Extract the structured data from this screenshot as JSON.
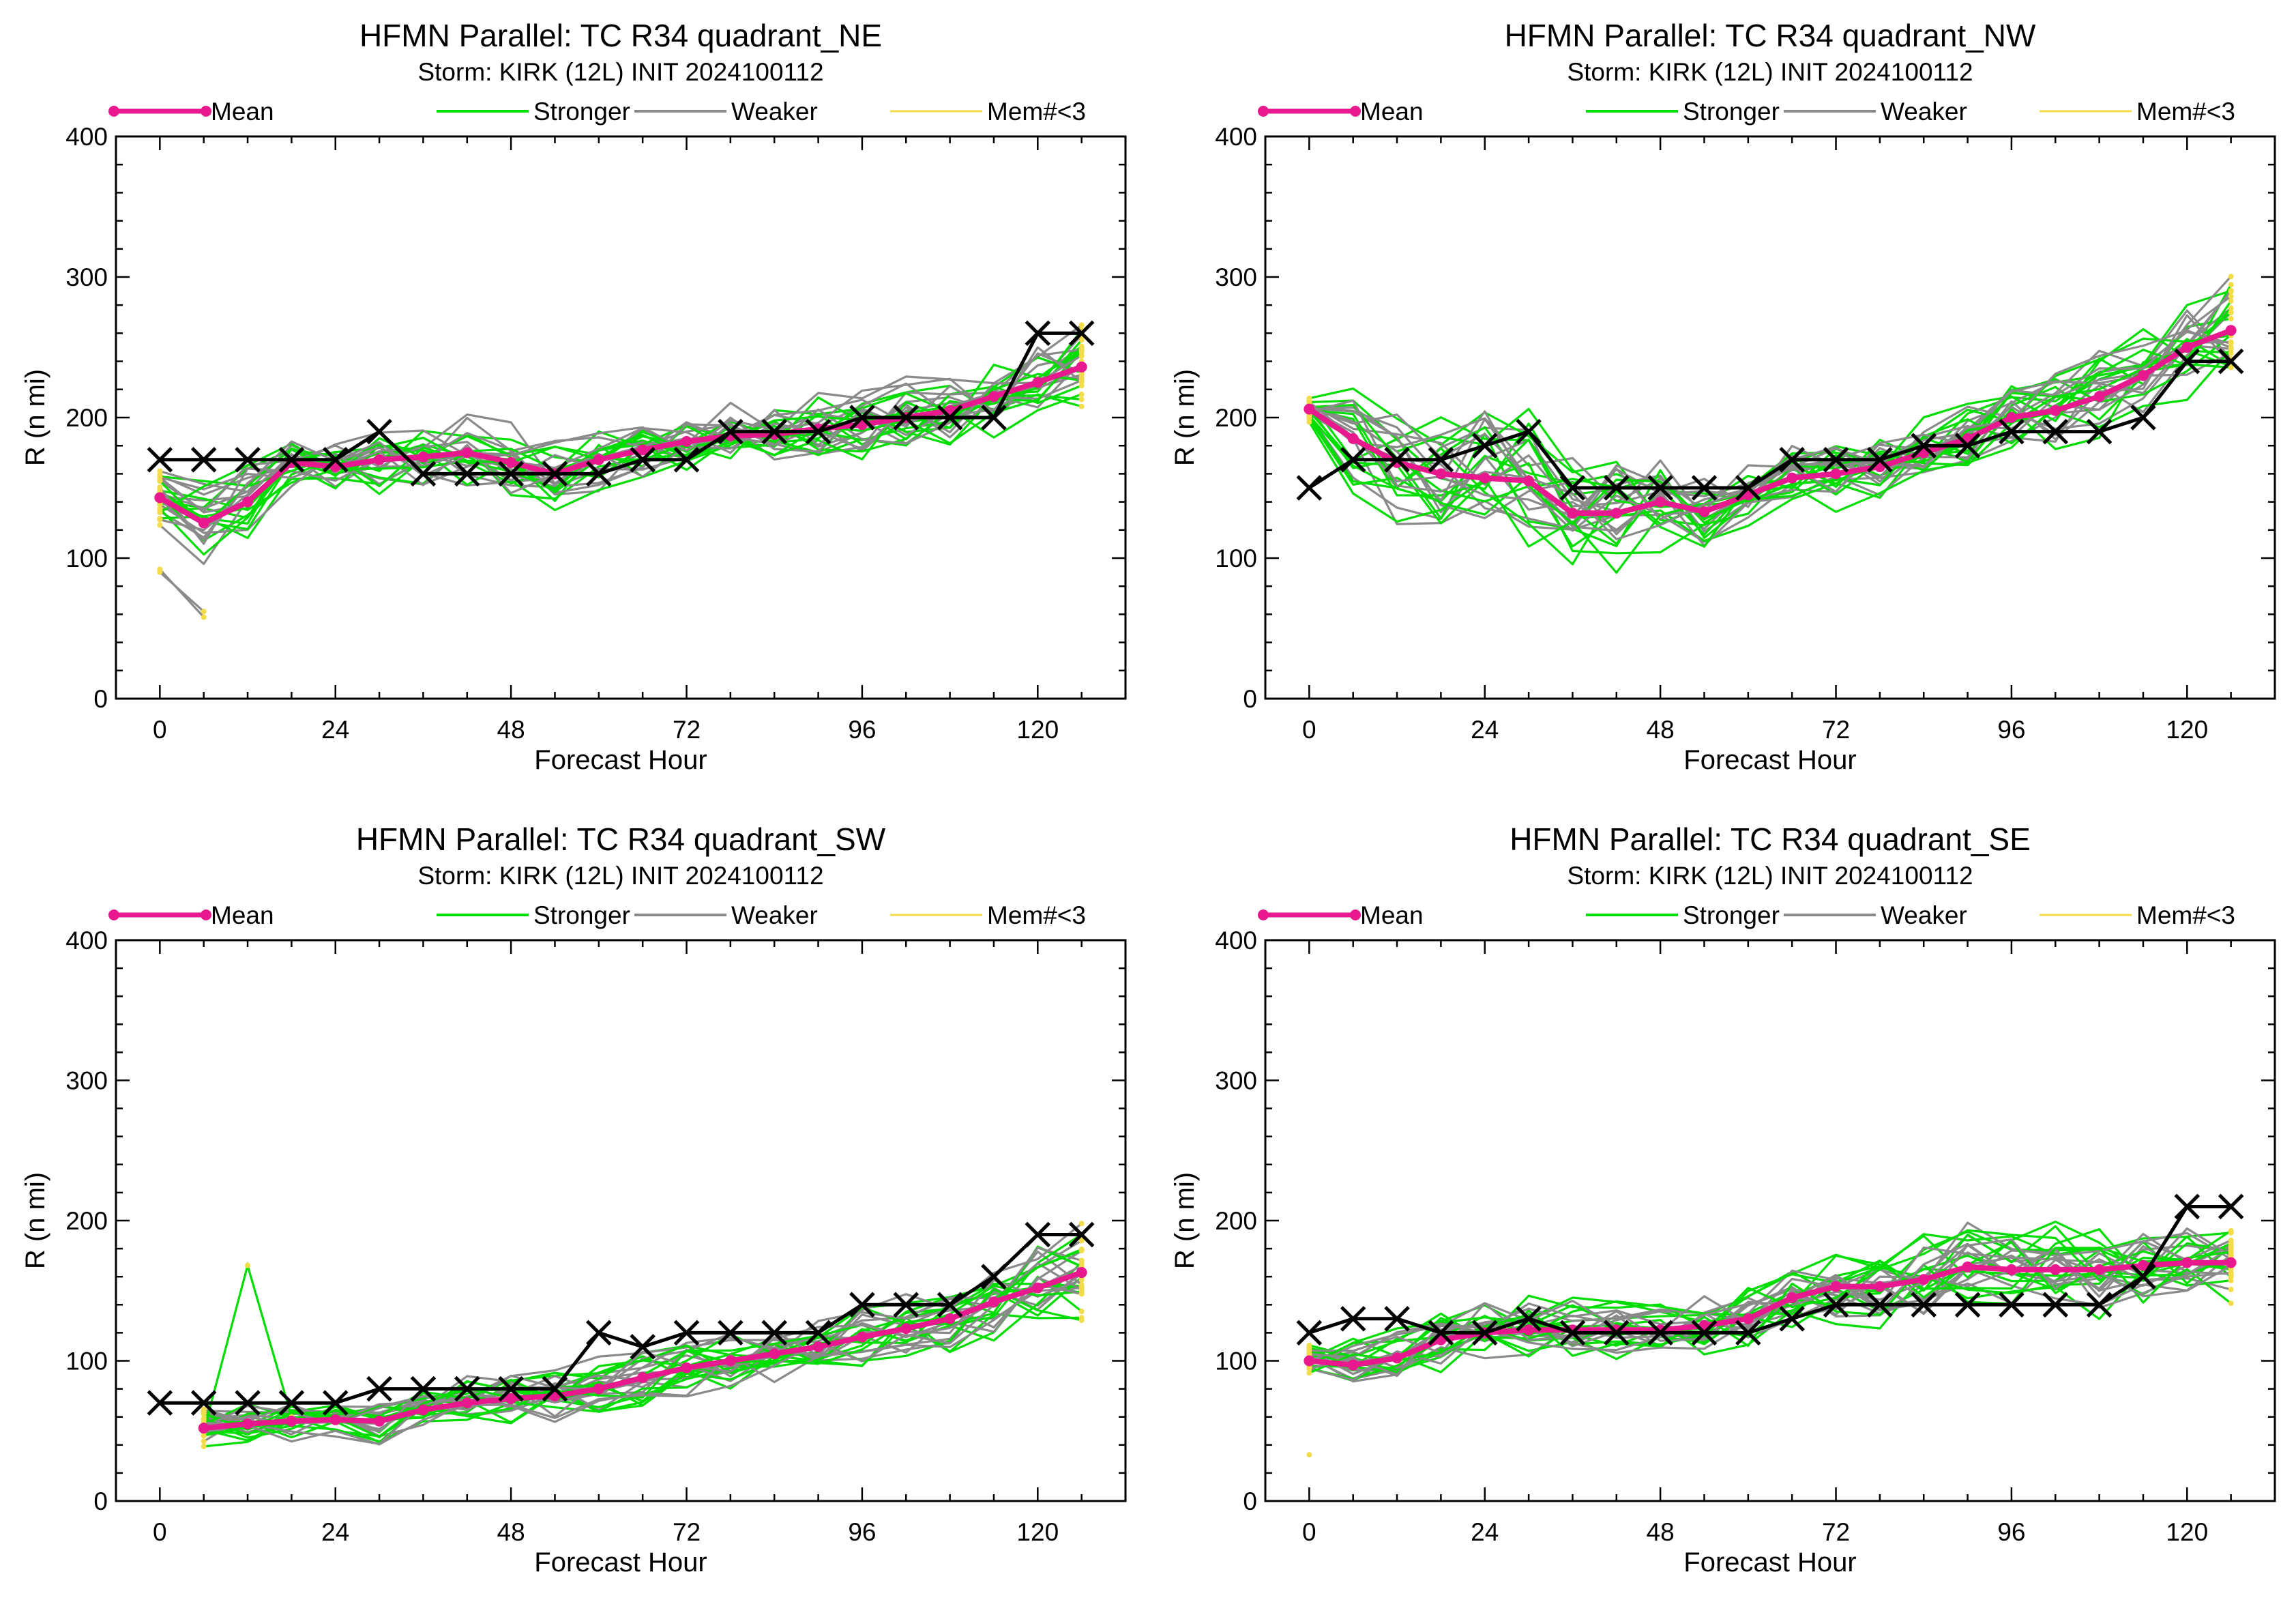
{
  "legend": {
    "mean": "Mean",
    "stronger": "Stronger",
    "weaker": "Weaker",
    "few_members": "Mem#<3"
  },
  "colors": {
    "mean": "#e8198e",
    "stronger": "#00dd00",
    "weaker": "#8a8a8a",
    "few_members": "#f2dc4a",
    "best_track": "#000000"
  },
  "chart_data": [
    {
      "type": "line",
      "title": "HFMN Parallel: TC  R34 quadrant_NE",
      "subtitle": "Storm: KIRK (12L) INIT 2024100112",
      "xlabel": "Forecast Hour",
      "ylabel": "R (n mi)",
      "xlim": [
        -6,
        132
      ],
      "ylim": [
        0,
        400
      ],
      "xticks": [
        0,
        24,
        48,
        72,
        96,
        120
      ],
      "yticks": [
        0,
        100,
        200,
        300,
        400
      ],
      "legend_placement": "top",
      "mean": {
        "x": [
          0,
          6,
          12,
          18,
          24,
          30,
          36,
          42,
          48,
          54,
          60,
          66,
          72,
          78,
          84,
          90,
          96,
          102,
          108,
          114,
          120,
          126
        ],
        "y": [
          143,
          125,
          140,
          168,
          165,
          170,
          172,
          175,
          168,
          160,
          170,
          177,
          183,
          187,
          188,
          192,
          195,
          200,
          205,
          215,
          225,
          236
        ]
      },
      "best_track": {
        "x": [
          0,
          6,
          12,
          18,
          24,
          30,
          36,
          42,
          48,
          54,
          60,
          66,
          72,
          78,
          84,
          90,
          96,
          102,
          108,
          114,
          120,
          126
        ],
        "y": [
          170,
          170,
          170,
          170,
          170,
          190,
          160,
          160,
          160,
          160,
          160,
          170,
          170,
          190,
          190,
          190,
          200,
          200,
          200,
          200,
          260,
          260
        ]
      },
      "ensemble": {
        "stronger_count": 14,
        "weaker_count": 12,
        "spread": [
          20,
          30,
          25,
          20,
          18,
          22,
          24,
          24,
          24,
          22,
          22,
          22,
          22,
          22,
          22,
          22,
          24,
          24,
          25,
          25,
          26,
          28
        ],
        "outliers": [
          {
            "x": [
              0,
              6
            ],
            "y": [
              92,
              58
            ]
          },
          {
            "x": [
              0,
              6
            ],
            "y": [
              90,
              62
            ]
          }
        ]
      }
    },
    {
      "type": "line",
      "title": "HFMN Parallel: TC  R34 quadrant_NW",
      "subtitle": "Storm: KIRK (12L) INIT 2024100112",
      "xlabel": "Forecast Hour",
      "ylabel": "R (n mi)",
      "xlim": [
        -6,
        132
      ],
      "ylim": [
        0,
        400
      ],
      "xticks": [
        0,
        24,
        48,
        72,
        96,
        120
      ],
      "yticks": [
        0,
        100,
        200,
        300,
        400
      ],
      "legend_placement": "top",
      "mean": {
        "x": [
          0,
          6,
          12,
          18,
          24,
          30,
          36,
          42,
          48,
          54,
          60,
          66,
          72,
          78,
          84,
          90,
          96,
          102,
          108,
          114,
          120,
          126
        ],
        "y": [
          206,
          185,
          168,
          160,
          157,
          155,
          132,
          132,
          140,
          133,
          145,
          157,
          160,
          165,
          175,
          185,
          200,
          205,
          215,
          230,
          250,
          262
        ]
      },
      "best_track": {
        "x": [
          0,
          6,
          12,
          18,
          24,
          30,
          36,
          42,
          48,
          54,
          60,
          66,
          72,
          78,
          84,
          90,
          96,
          102,
          108,
          114,
          120,
          126
        ],
        "y": [
          150,
          170,
          170,
          170,
          180,
          190,
          150,
          150,
          150,
          150,
          150,
          170,
          170,
          170,
          180,
          180,
          190,
          190,
          190,
          200,
          240,
          240
        ]
      },
      "ensemble": {
        "stronger_count": 14,
        "weaker_count": 12,
        "spread": [
          8,
          35,
          40,
          45,
          45,
          45,
          35,
          35,
          35,
          25,
          22,
          22,
          22,
          22,
          22,
          22,
          25,
          25,
          28,
          30,
          32,
          35
        ],
        "outliers": []
      }
    },
    {
      "type": "line",
      "title": "HFMN Parallel: TC  R34 quadrant_SW",
      "subtitle": "Storm: KIRK (12L) INIT 2024100112",
      "xlabel": "Forecast Hour",
      "ylabel": "R (n mi)",
      "xlim": [
        -6,
        132
      ],
      "ylim": [
        0,
        400
      ],
      "xticks": [
        0,
        24,
        48,
        72,
        96,
        120
      ],
      "yticks": [
        0,
        100,
        200,
        300,
        400
      ],
      "legend_placement": "top",
      "mean": {
        "x": [
          6,
          12,
          18,
          24,
          30,
          36,
          42,
          48,
          54,
          60,
          66,
          72,
          78,
          84,
          90,
          96,
          102,
          108,
          114,
          120,
          126
        ],
        "y": [
          52,
          55,
          57,
          58,
          57,
          65,
          70,
          73,
          75,
          80,
          88,
          95,
          100,
          105,
          110,
          117,
          123,
          130,
          142,
          152,
          163
        ]
      },
      "best_track": {
        "x": [
          0,
          6,
          12,
          18,
          24,
          30,
          36,
          42,
          48,
          54,
          60,
          66,
          72,
          78,
          84,
          90,
          96,
          102,
          108,
          114,
          120,
          126
        ],
        "y": [
          70,
          70,
          70,
          70,
          70,
          80,
          80,
          80,
          80,
          80,
          120,
          110,
          120,
          120,
          120,
          120,
          140,
          140,
          140,
          160,
          190,
          190
        ]
      },
      "ensemble": {
        "start_hour": 6,
        "stronger_count": 14,
        "weaker_count": 12,
        "spread": [
          12,
          12,
          12,
          12,
          14,
          15,
          16,
          16,
          16,
          18,
          18,
          18,
          18,
          18,
          18,
          20,
          20,
          22,
          24,
          26,
          30
        ],
        "outliers": [
          {
            "x": [
              6,
              12,
              18
            ],
            "y": [
              50,
              168,
              60
            ]
          }
        ]
      }
    },
    {
      "type": "line",
      "title": "HFMN Parallel: TC  R34 quadrant_SE",
      "subtitle": "Storm: KIRK (12L) INIT 2024100112",
      "xlabel": "Forecast Hour",
      "ylabel": "R (n mi)",
      "xlim": [
        -6,
        132
      ],
      "ylim": [
        0,
        400
      ],
      "xticks": [
        0,
        24,
        48,
        72,
        96,
        120
      ],
      "yticks": [
        0,
        100,
        200,
        300,
        400
      ],
      "legend_placement": "top",
      "mean": {
        "x": [
          0,
          6,
          12,
          18,
          24,
          30,
          36,
          42,
          48,
          54,
          60,
          66,
          72,
          78,
          84,
          90,
          96,
          102,
          108,
          114,
          120,
          126
        ],
        "y": [
          100,
          97,
          102,
          115,
          120,
          122,
          122,
          122,
          122,
          125,
          130,
          145,
          153,
          153,
          158,
          167,
          165,
          165,
          165,
          168,
          170,
          170
        ]
      },
      "best_track": {
        "x": [
          0,
          6,
          12,
          18,
          24,
          30,
          36,
          42,
          48,
          54,
          60,
          66,
          72,
          78,
          84,
          90,
          96,
          102,
          108,
          114,
          120,
          126
        ],
        "y": [
          120,
          130,
          130,
          120,
          120,
          130,
          120,
          120,
          120,
          120,
          120,
          130,
          140,
          140,
          140,
          140,
          140,
          140,
          140,
          160,
          210,
          210
        ]
      },
      "ensemble": {
        "stronger_count": 14,
        "weaker_count": 12,
        "spread": [
          10,
          15,
          20,
          20,
          20,
          20,
          18,
          18,
          18,
          18,
          20,
          20,
          22,
          24,
          26,
          28,
          30,
          30,
          28,
          26,
          24,
          24
        ],
        "outliers": [
          {
            "x": [
              0
            ],
            "y": [
              33
            ]
          }
        ]
      }
    }
  ]
}
